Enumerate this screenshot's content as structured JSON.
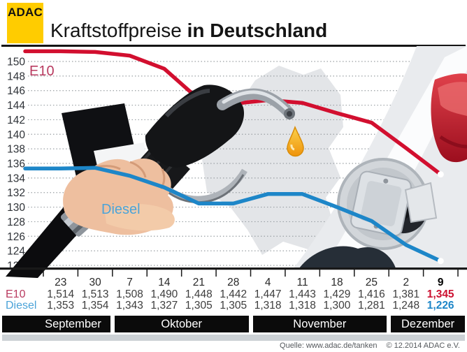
{
  "header": {
    "logo": "ADAC",
    "title_regular": "Kraftstoffpreise",
    "title_bold": "in Deutschland"
  },
  "chart_data": {
    "type": "line",
    "title": "Kraftstoffpreise in Deutschland",
    "grid": true,
    "legend_position": "on-chart",
    "y_axis": {
      "min": 122,
      "max": 150,
      "tick_step": 2
    },
    "categories": [
      "23",
      "30",
      "7",
      "14",
      "21",
      "28",
      "4",
      "11",
      "18",
      "25",
      "2",
      "9"
    ],
    "highlight_last_column": true,
    "months": [
      {
        "label": "September",
        "columns": 2
      },
      {
        "label": "Oktober",
        "columns": 4
      },
      {
        "label": "November",
        "columns": 4
      },
      {
        "label": "Dezember",
        "columns": 2
      }
    ],
    "series": [
      {
        "name": "E10",
        "line_color": "#d20f2f",
        "label_color": "#b93b60",
        "final_value_color": "#cc1030",
        "values": [
          1.514,
          1.513,
          1.508,
          1.49,
          1.448,
          1.442,
          1.447,
          1.443,
          1.429,
          1.416,
          1.381,
          1.345
        ]
      },
      {
        "name": "Diesel",
        "line_color": "#1d86c8",
        "label_color": "#4ba3d8",
        "final_value_color": "#1d86c8",
        "values": [
          1.353,
          1.354,
          1.343,
          1.327,
          1.305,
          1.305,
          1.318,
          1.318,
          1.3,
          1.281,
          1.248,
          1.226
        ]
      }
    ]
  },
  "footer": {
    "source": "Quelle: www.adac.de/tanken",
    "copyright": "© 12.2014  ADAC e.V."
  }
}
